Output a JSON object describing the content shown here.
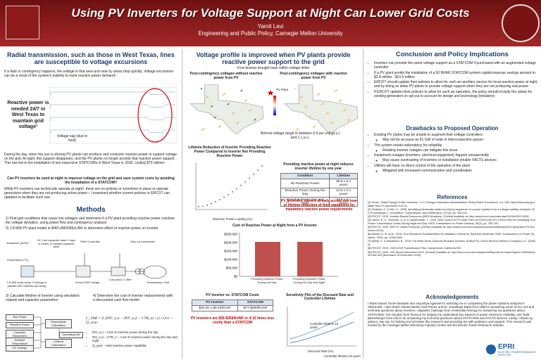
{
  "header": {
    "title": "Using PV Inverters for Voltage Support at Night Can Lower Grid Costs",
    "author": "Yamit Lavi",
    "affiliation": "Engineering and Public Policy, Carnegie Mellon University"
  },
  "radial": {
    "heading": "Radial transmission, such as those in West Texas, lines are susceptible to voltage excursions",
    "intro": "If a fault or contingency happens, the voltage in that area and near by areas drop quickly. Voltage excursions can be a result of the system's inability to meet reactive power demand¹.",
    "callout": "Reactive power is needed 24/7 in West Texas to maintain grid voltage¹",
    "sag": "Voltage sag (due to fault)",
    "day_night": "During the day, when the sun is shining PV plants can produce and consume reactive power to support voltage on the grid. At night, this support disappears, and the PV plants no longer provide that reactive power support. This has led to the installation of two expensive STATCOMs in West Texas in 2018, costing $70 million².",
    "question": "Can PV inverters be used at night to improve voltage on the grid and save system costs by avoiding the installation of a STATCOM?",
    "policy": "While PV inverters can technically operate at night³, there are no policies or incentives in place to operate generators when they are not producing active power⁴. I examined whether current policies in ERCOT can updated to facilitate such use."
  },
  "methods": {
    "heading": "Methods",
    "steps": [
      "1) Find grid conditions that cause low voltages and determine if a PV plant providing reactive power resolves the voltage deviation, using power flow and contingency analysis",
      "2) 2.8 MW PV plant model in MATLAB/SIMULINK to determine effect of reactive power on inverter"
    ],
    "circuit": [
      "DC Link capacitor bank 2 caps in series 11 parallel capacitor pairs",
      "PWM Controller",
      "Step up transformer",
      "Irradiance (W/m²)",
      "Temperature (°C)",
      "Low pass LC filter",
      "Transmission Grid",
      "2.8 MW solar array 74 strings in parallel 264 modules per string",
      "3-level IGBT bridge"
    ],
    "steps2": [
      "3) Calculate lifetime of inverter using simulation outputs and capacitor parameters",
      "4) Determine the cost of inverter replacements with a discounted cash flow model"
    ],
    "flow": [
      "Bus Power",
      "Reactive Power",
      "Capacitor Parameters",
      "Ambient Temperature",
      "DC Voltage",
      "Temperature Calculation",
      "Lifetime Calculation",
      "Operating Life"
    ],
    "formula": "C_VAR = Σ (INV_n,n − INV_n,d − CTR_n) / (1+r)^n ÷ Q_year",
    "terms": [
      "INV_n,n – Cost of reactive power during the day",
      "INV_n,d – CTR_n – Cost of reactive power during the day and night",
      "Q_year – total reactive power capability"
    ]
  },
  "voltage": {
    "heading": "Voltage profile is improved when PV plants provide reactive power support to the grid",
    "subtitle": "Four busses brought back within voltage limits",
    "map_without": "Post-contingency voltages without reactive power from PV",
    "map_with": "Post-contingency voltages with reactive power from PV",
    "legend": "PV Plant",
    "note": "Normal voltage range is between 0.9 per unit (p.u.) and 1.1 p.u."
  },
  "lifetime": {
    "chart_title": "Lifetime Reduction of Inverter Providing Reactive Power Compared to Inverter Not Providing Reactive Power",
    "x_label": "Reactive Power Loading (%)",
    "table_title": "Providing reactive power at night reduces inverter lifetime by one year",
    "columns": [
      "Condition",
      "Lifetime"
    ],
    "rows": [
      [
        "No Reactive Power",
        "25.9 ± 0.1 years"
      ],
      [
        "Reactive Power During the Day",
        "24.6 ± 0.1 years"
      ],
      [
        "Reactive Power Day and Night",
        "23.8 ± 0.1 years"
      ]
    ],
    "finding": "PV generator owners already accept one year of lifetime reduction of their equipment for mandatory reactive power requirements"
  },
  "cost": {
    "chart_title": "Cost of Reactive Power at Night from a PV Inverter",
    "yticks": [
      "$250,000",
      "$200,000",
      "$150,000",
      "$100,000",
      "$50,000",
      "$0"
    ],
    "bars": [
      "Providing Reactive Power During the Day",
      "Providing Reactive Power During the Day and Night"
    ],
    "table_title": "PV Inverter vs. STATCOM Costs",
    "columns": [
      "PV Inverter",
      "STATCOM"
    ],
    "row": [
      "$20.20 ± $0.40/kVAR",
      "$77-$290/kVAR"
    ],
    "finding": "PV inverters are $56-$269/kVAR or 4-15 times less costly than a STATCOM",
    "sensitivity": {
      "title": "Sensitivity Plot of the Discount Rate and Controller Lifetime",
      "label10": "Controller lifetime 10 years",
      "label20": "Controller lifetime 20 years",
      "x_label": "Discount Rate (%)"
    }
  },
  "conclusion": {
    "heading": "Conclusion and Policy Implications",
    "bullets": [
      "Inverters can provide the same voltage support as a STATCOM if purchased with an augmented voltage controller",
      "If a PV plant avoids the installation of a 50 MVAR STATCOM system capital expense savings amount to $2.8 million - $13.5 million",
      "ERCOT should update their policies to allow for such an ancillary service for local reactive power at night, and by doing so allow PV plants to provide voltage support when they are not producing real power",
      "If ERCOT updates their policies to allow for such an operation, the policy should include the option for existing generators to opt out to account for design and technology limitations"
    ]
  },
  "drawbacks": {
    "heading": "Drawbacks to Proposed Operation",
    "items": [
      {
        "text": "Existing PV plants may be unable to augment their voltage controllers",
        "sub": "May not be an issue as 81 GW of solar in interconnection queue⁵"
      },
      {
        "text": "The system needs redundancy for reliability",
        "sub": "Rotating inverter outages can mitigate this issue"
      },
      {
        "text": "Equipment outages (inverters, electrical equipment) happen unexpectedly",
        "sub": "May cause overloading of inverters or installation smaller FACTS devices"
      },
      {
        "text": "Utilities will have no direct control of the operation of the plant",
        "sub": "Mitigated with increased communication and coordination"
      }
    ]
  },
  "references": {
    "heading": "References",
    "items": [
      "[1] Texas - State Energy Profile Overview - U.S. Energy Information Administration (EIA) [Online Document]. n.d. URL https://www.eia.gov/state/?sid=TX (accessed 4.8.21).",
      "[2] Obafemi, O. & Wei, G., 1998. Identifying electrically weak and strong segments of a power system from a voltage stability viewpoint. IEE Proceedings C: Generation, Transmission, and Distribution, 137(3), pp. 205-212.",
      "[3] ERCOT, 2019. Inverter-Based Resources (IBR) Workshop. [Online] Available at: http://www.ercot.com/calendar/2019/4/25/174282",
      "[4] Varma, R. K., Rahman, S. A. & Vanderheide, T., 2015. New Control of PV Solar Farm as STATCOM (PV-STATCOM) for Increasing Grid Power Transmission Limits During Night and Day. IEEE Transactions on Power Delivery, 30(2), pp. 755-763.",
      "[5] ERCOT, 2020. ERCOT Nodal Protocols. [Online] Available at: http://www.ercot.com/mktrules/nprotocols/library/2020 [Accessed 23 November 2020].",
      "[6] Ahmed, A. B. et al., 2016. Grid Structural Characteristics as Validation Criteria for Synthetic Networks. IEEE Transactions on Power Systems, 32(4), pp. 3258-3265.",
      "[7] Weldy, C. & Kawakami, B., 2018. Far West Texas Dynamic Reactive Devices. Austin(TX): Oncor Electric Delivery Company LLC. [Online]",
      "[8] ERCOT, 2019. 2019-2019 Transmission Plan, Sacramento: California ISO.",
      "[9] ERCOT, 2020. GIS Report November 2020. [Online] Available at: http://mis.ercot.com/misapp/GetReports.do?reportTypeId=15933&reportTitle=GIS [Accessed 14 December 2020]."
    ]
  },
  "acknowledgements": {
    "heading": "Acknowledgements",
    "text": "I thank Naomi Turner Bandele and Aayushya Agarwal for assisting me in completing the power systems analysis in SIMULINK. I also thank Claude Barker Hart-Pinner and Dr. Gondinger Baba from ABB for answering some of my cost and technical questions about inverters, Alejandro Castrogo from Amsterdam Energy for answering my questions about STATCOMs, Tom Dunbar from Fluence for helping me understand key aspects of power electronic reliability, and Todd Basenberger from Oncor for answering my technical questions about STATCOMs and FACTS devices. Lastly, I thank my advisor, Jay Apt, for helping me formulate this research and providing me with guidance and support. This research was funded by the Carnegie Mellon Electricity Industry Center and the Electric Power Research Institute."
  },
  "logo": {
    "name": "EPRI",
    "tagline": "ELECTRIC POWER RESEARCH INSTITUTE"
  }
}
